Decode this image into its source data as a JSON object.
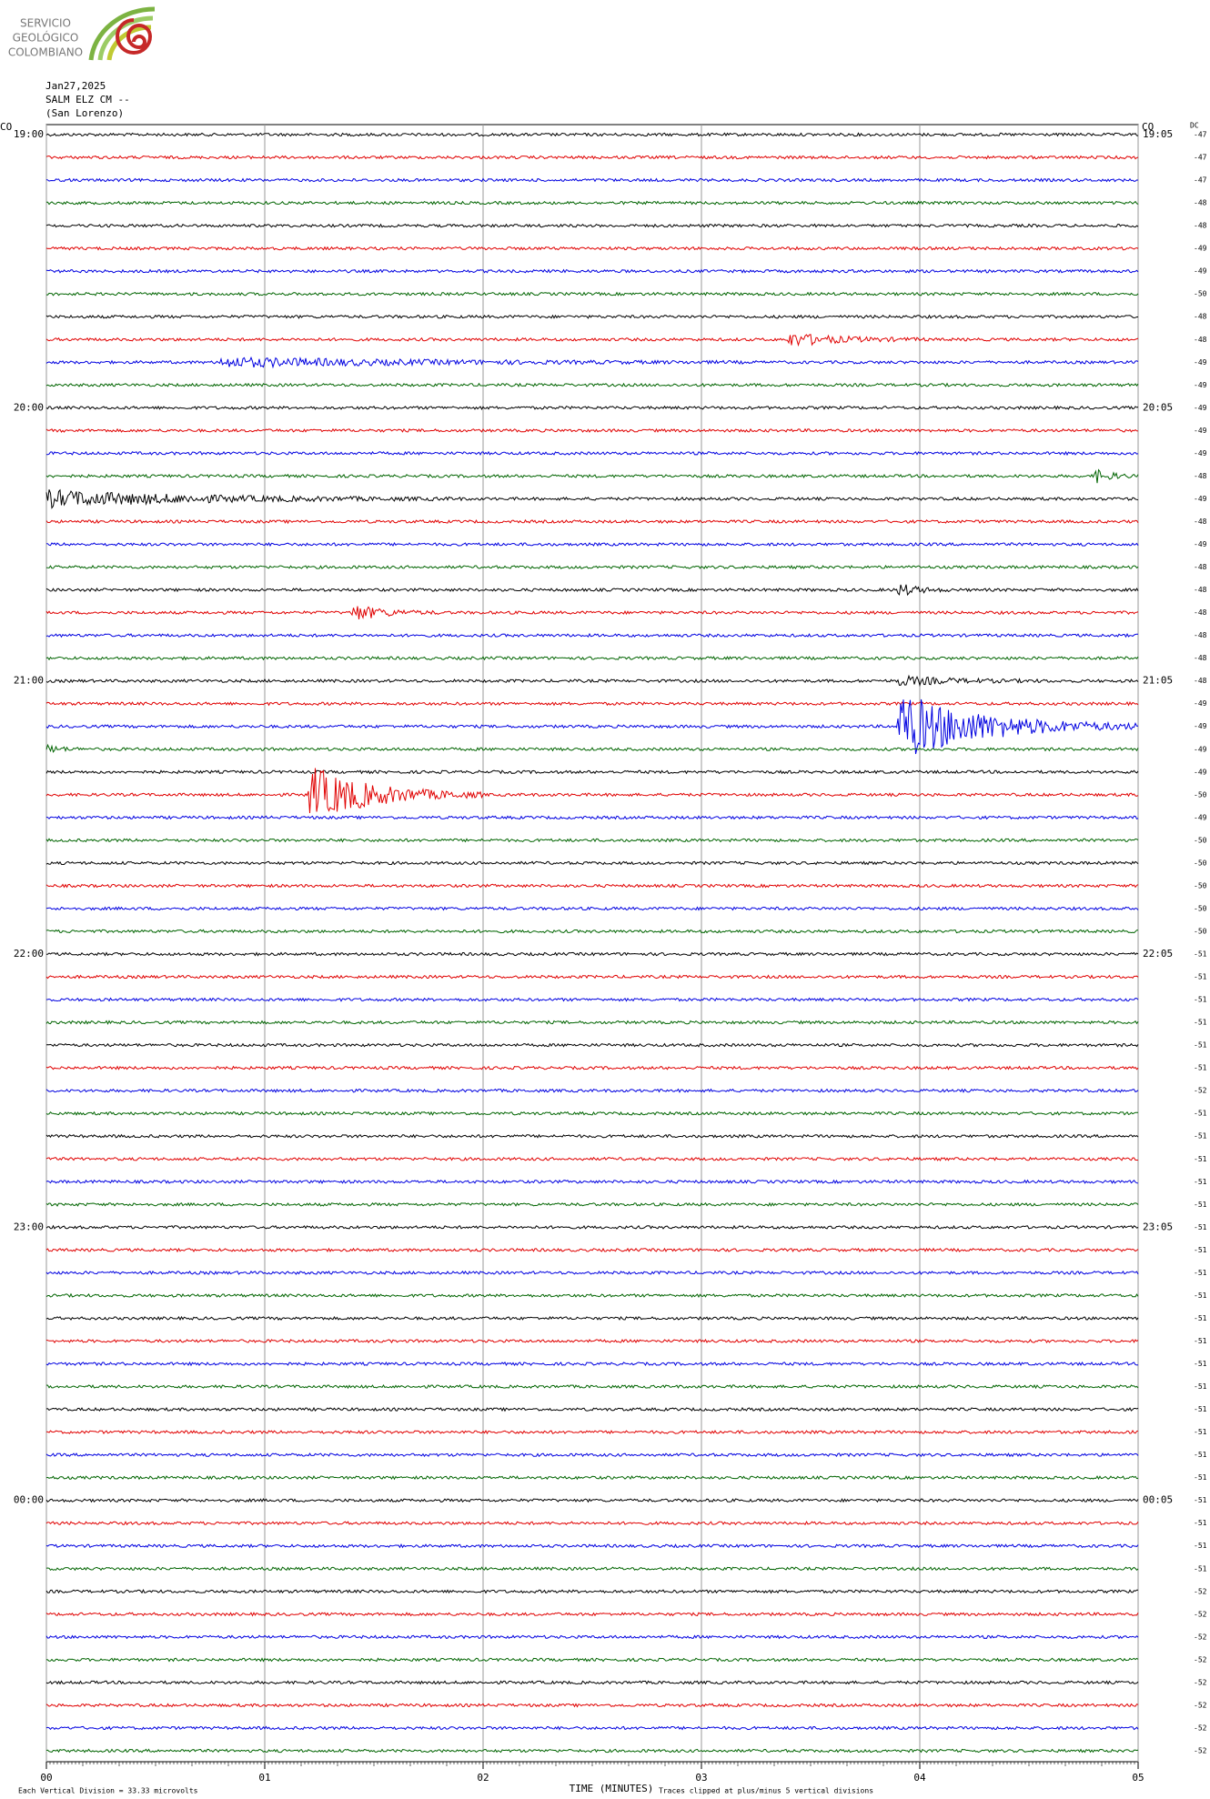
{
  "logo": [
    "SERVICIO",
    "GEOLÓGICO",
    "COLOMBIANO"
  ],
  "header": {
    "date": "Jan27,2025",
    "station": "SALM ELZ CM --",
    "location": "(San Lorenzo)"
  },
  "chart_data": {
    "type": "helicorder",
    "left_zone": "CO",
    "right_zone": "CO",
    "dc_label": "DC",
    "row_count": 72,
    "colors": [
      "#000000",
      "#e00000",
      "#0000e0",
      "#006400"
    ],
    "left_labels": [
      "19:00",
      "20:00",
      "21:00",
      "22:00",
      "23:00",
      "00:00"
    ],
    "right_labels": [
      "19:05",
      "20:05",
      "21:05",
      "22:05",
      "23:05",
      "00:05"
    ],
    "dc_offsets": [
      -47,
      -47,
      -47,
      -48,
      -48,
      -49,
      -49,
      -50,
      -48,
      -48,
      -49,
      -49,
      -49,
      -49,
      -49,
      -48,
      -49,
      -48,
      -49,
      -48,
      -48,
      -48,
      -48,
      -48,
      -48,
      -49,
      -49,
      -49,
      -49,
      -50,
      -49,
      -50,
      -50,
      -50,
      -50,
      -50,
      -51,
      -51,
      -51,
      -51,
      -51,
      -51,
      -52,
      -51,
      -51,
      -51,
      -51,
      -51,
      -51,
      -51,
      -51,
      -51,
      -51,
      -51,
      -51,
      -51,
      -51,
      -51,
      -51,
      -51,
      -51,
      -51,
      -51,
      -51,
      -52,
      -52,
      -52,
      -52,
      -52,
      -52,
      -52,
      -52
    ],
    "xlim": [
      0,
      5
    ],
    "xticks": [
      {
        "value": 0,
        "label": "00"
      },
      {
        "value": 1,
        "label": "01"
      },
      {
        "value": 2,
        "label": "02"
      },
      {
        "value": 3,
        "label": "03"
      },
      {
        "value": 4,
        "label": "04"
      },
      {
        "value": 5,
        "label": "05"
      }
    ],
    "x_label": "TIME (MINUTES)",
    "scale_note": "Each Vertical Division =   33.33 microvolts",
    "clip_note": "Traces clipped at plus/minus 5 vertical divisions"
  }
}
